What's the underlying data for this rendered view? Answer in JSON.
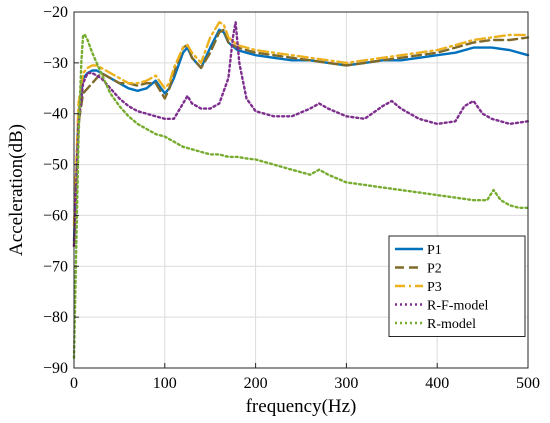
{
  "chart_data": {
    "type": "line",
    "xlabel": "frequency(Hz)",
    "ylabel": "Acceleration(dB)",
    "xlim": [
      0,
      500
    ],
    "ylim": [
      -90,
      -20
    ],
    "xticks": [
      0,
      100,
      200,
      300,
      400,
      500
    ],
    "yticks": [
      -90,
      -80,
      -70,
      -60,
      -50,
      -40,
      -30,
      -20
    ],
    "grid": true,
    "legend_position": "bottom-right",
    "series": [
      {
        "name": "P1",
        "color": "#0072BD",
        "dash": "solid",
        "x": [
          0,
          5,
          10,
          15,
          20,
          25,
          30,
          40,
          50,
          60,
          70,
          80,
          90,
          100,
          105,
          110,
          120,
          125,
          130,
          140,
          150,
          160,
          165,
          170,
          180,
          190,
          200,
          220,
          240,
          260,
          280,
          300,
          320,
          340,
          360,
          380,
          400,
          420,
          440,
          460,
          480,
          500
        ],
        "y": [
          -65,
          -40,
          -33,
          -32,
          -31.5,
          -31.5,
          -32,
          -33,
          -34,
          -35,
          -35.5,
          -35,
          -33.5,
          -36,
          -35,
          -33,
          -28,
          -27,
          -29,
          -31,
          -27,
          -23.5,
          -24,
          -26,
          -27.5,
          -28,
          -28.5,
          -29,
          -29.5,
          -29.5,
          -30,
          -30.5,
          -30,
          -29.5,
          -29.5,
          -29,
          -28.5,
          -28,
          -27,
          -27,
          -27.5,
          -28.5
        ]
      },
      {
        "name": "P2",
        "color": "#7F6A2A",
        "dash": "dashed",
        "x": [
          0,
          5,
          10,
          15,
          20,
          25,
          30,
          40,
          50,
          60,
          70,
          80,
          90,
          100,
          105,
          110,
          120,
          125,
          130,
          140,
          150,
          160,
          165,
          170,
          180,
          190,
          200,
          220,
          240,
          260,
          280,
          300,
          320,
          340,
          360,
          380,
          400,
          420,
          440,
          460,
          480,
          500
        ],
        "y": [
          -66,
          -42,
          -36,
          -35,
          -34,
          -33,
          -32,
          -33,
          -34,
          -34,
          -34.5,
          -34,
          -34,
          -37,
          -35,
          -32,
          -27,
          -26.5,
          -29,
          -31,
          -28,
          -24,
          -23.5,
          -26,
          -27,
          -27.5,
          -28,
          -28.5,
          -29,
          -29.5,
          -30,
          -30.5,
          -30,
          -29.5,
          -29,
          -28.5,
          -28,
          -27,
          -26,
          -25.5,
          -25.5,
          -25
        ]
      },
      {
        "name": "P3",
        "color": "#EDB120",
        "dash": "dashdot",
        "x": [
          0,
          5,
          10,
          15,
          20,
          25,
          30,
          40,
          50,
          60,
          70,
          80,
          90,
          100,
          105,
          110,
          120,
          125,
          130,
          140,
          150,
          160,
          165,
          170,
          180,
          190,
          200,
          220,
          240,
          260,
          280,
          300,
          320,
          340,
          360,
          380,
          400,
          420,
          440,
          460,
          480,
          500
        ],
        "y": [
          -62,
          -38,
          -32,
          -31,
          -30.5,
          -30.5,
          -31,
          -32,
          -33,
          -34,
          -34,
          -33.5,
          -32.5,
          -35,
          -34,
          -31,
          -27,
          -26.5,
          -28,
          -30,
          -25,
          -22,
          -22.5,
          -25,
          -26.5,
          -27,
          -27.5,
          -28,
          -28.5,
          -29,
          -29.5,
          -30,
          -29.5,
          -29,
          -28.5,
          -28,
          -27.5,
          -26.5,
          -25.5,
          -25,
          -24.5,
          -24.5
        ]
      },
      {
        "name": "R-F-model",
        "color": "#7E2F8E",
        "dash": "dotted",
        "x": [
          0,
          5,
          10,
          15,
          20,
          25,
          30,
          40,
          50,
          60,
          70,
          80,
          90,
          100,
          110,
          120,
          125,
          130,
          140,
          150,
          160,
          170,
          175,
          178,
          182,
          190,
          200,
          220,
          240,
          260,
          270,
          280,
          300,
          320,
          340,
          350,
          360,
          380,
          400,
          420,
          430,
          440,
          450,
          460,
          480,
          500
        ],
        "y": [
          -66,
          -42,
          -34,
          -32,
          -32,
          -32.5,
          -33,
          -35,
          -37,
          -38.5,
          -39.5,
          -40,
          -40.5,
          -41,
          -41,
          -38,
          -36.5,
          -38,
          -39,
          -39,
          -38,
          -33,
          -25,
          -22,
          -30,
          -37,
          -39.5,
          -40.5,
          -40.5,
          -39,
          -38,
          -39,
          -40.5,
          -41,
          -38.5,
          -37.5,
          -39,
          -41,
          -42,
          -41.5,
          -38.5,
          -37.5,
          -40,
          -41,
          -42,
          -41.5
        ]
      },
      {
        "name": "R-model",
        "color": "#77AC30",
        "dash": "dotted",
        "x": [
          0,
          5,
          8,
          10,
          12,
          15,
          20,
          25,
          30,
          40,
          50,
          60,
          70,
          80,
          90,
          100,
          110,
          120,
          130,
          140,
          150,
          160,
          170,
          180,
          190,
          200,
          220,
          240,
          260,
          270,
          280,
          300,
          320,
          340,
          360,
          380,
          400,
          420,
          440,
          455,
          462,
          470,
          480,
          490,
          500
        ],
        "y": [
          -88,
          -45,
          -30,
          -24.5,
          -24.5,
          -25.5,
          -28,
          -30,
          -32,
          -36,
          -38.5,
          -40.5,
          -42,
          -43,
          -44,
          -44.5,
          -45.5,
          -46.5,
          -47,
          -47.5,
          -48,
          -48,
          -48.5,
          -48.5,
          -48.8,
          -49,
          -50,
          -51,
          -52,
          -51,
          -52,
          -53.5,
          -54,
          -54.5,
          -55,
          -55.5,
          -56,
          -56.5,
          -57,
          -57,
          -55,
          -57,
          -58,
          -58.5,
          -58.5
        ]
      }
    ]
  }
}
